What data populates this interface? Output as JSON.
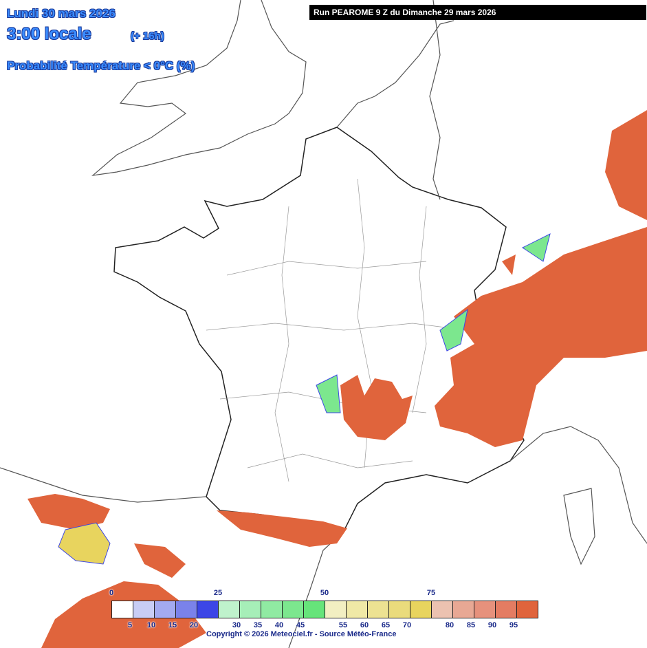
{
  "header": {
    "date": "Lundi 30 mars 2026",
    "time": "3:00 locale",
    "lead": "(+ 16h)",
    "subtitle": "Probabilité Température < 0°C (%)"
  },
  "run": "Run PEAROME 9 Z du Dimanche 29 mars 2026",
  "legend": {
    "top_labels": [
      "0",
      "25",
      "50",
      "75"
    ],
    "bottom_labels": [
      "5",
      "10",
      "15",
      "20",
      "30",
      "35",
      "40",
      "45",
      "55",
      "60",
      "65",
      "70",
      "80",
      "85",
      "90",
      "95"
    ],
    "colors": [
      "#ffffff",
      "#c8cdf5",
      "#a3aaf0",
      "#7a82ea",
      "#3c46e6",
      "#bff2cc",
      "#a6eeb8",
      "#90eaa2",
      "#7ce78e",
      "#66e47a",
      "#f2efc2",
      "#f0e9a6",
      "#ede292",
      "#eadb7c",
      "#e8d45e",
      "#ecc2b0",
      "#e8a894",
      "#e6917c",
      "#e47c62",
      "#e0643c"
    ]
  },
  "copyright": "Copyright © 2026 Meteociel.fr - Source Météo-France"
}
